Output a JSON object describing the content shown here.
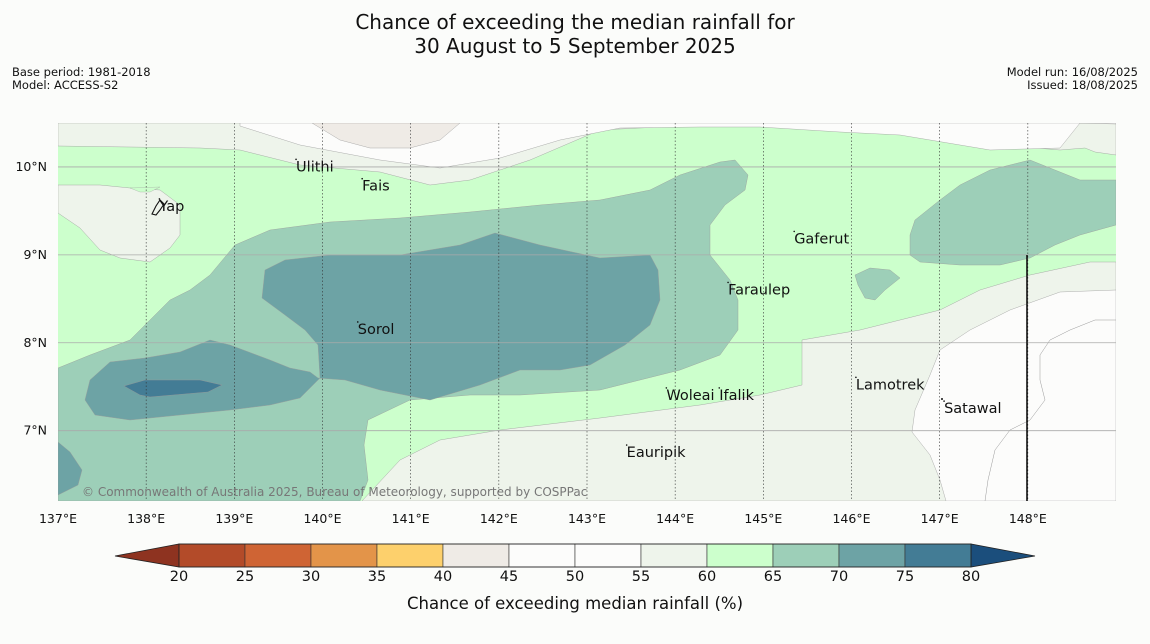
{
  "title": {
    "line1": "Chance of exceeding the median rainfall for",
    "line2": "30 August to 5 September 2025"
  },
  "meta": {
    "base_period": "Base period: 1981-2018",
    "model": "Model: ACCESS-S2",
    "model_run": "Model run: 16/08/2025",
    "issued": "Issued: 18/08/2025"
  },
  "copyright": "© Commonwealth of Australia 2025, Bureau of Meteorology, supported by COSPPac",
  "axes": {
    "x_ticks": [
      "137°E",
      "138°E",
      "139°E",
      "140°E",
      "141°E",
      "142°E",
      "143°E",
      "144°E",
      "145°E",
      "146°E",
      "147°E",
      "148°E"
    ],
    "y_ticks": [
      "10°N",
      "9°N",
      "8°N",
      "7°N"
    ],
    "x_range": [
      137,
      149
    ],
    "y_range": [
      6.2,
      10.5
    ]
  },
  "places": [
    {
      "name": "Ulithi",
      "lon": 139.7,
      "lat": 9.95
    },
    {
      "name": "Fais",
      "lon": 140.45,
      "lat": 9.73
    },
    {
      "name": "Yap",
      "lon": 138.15,
      "lat": 9.5
    },
    {
      "name": "Gaferut",
      "lon": 145.35,
      "lat": 9.13
    },
    {
      "name": "Faraulep",
      "lon": 144.6,
      "lat": 8.55
    },
    {
      "name": "Sorol",
      "lon": 140.4,
      "lat": 8.1
    },
    {
      "name": "Lamotrek",
      "lon": 146.05,
      "lat": 7.47
    },
    {
      "name": "Woleai",
      "lon": 143.9,
      "lat": 7.35
    },
    {
      "name": "Ifalik",
      "lon": 144.5,
      "lat": 7.35
    },
    {
      "name": "Satawal",
      "lon": 147.05,
      "lat": 7.2
    },
    {
      "name": "Eauripik",
      "lon": 143.45,
      "lat": 6.7
    }
  ],
  "colorbar": {
    "title": "Chance of exceeding median rainfall (%)",
    "ticks": [
      "20",
      "25",
      "30",
      "35",
      "40",
      "45",
      "50",
      "55",
      "60",
      "65",
      "70",
      "75",
      "80"
    ],
    "low_color": "#8e3320",
    "high_color": "#1b4e7c",
    "colors": [
      "#b34b29",
      "#cf6434",
      "#e39449",
      "#fdd06c",
      "#efebe6",
      "#fcfcfb",
      "#fcfcfb",
      "#eef4eb",
      "#ccffcc",
      "#9dcfb8",
      "#6da3a5",
      "#437c95"
    ]
  }
}
